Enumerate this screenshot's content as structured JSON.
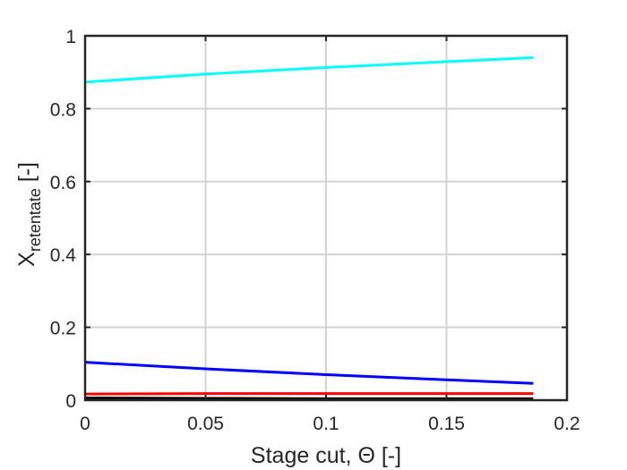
{
  "chart_data": {
    "type": "line",
    "xlabel": "Stage cut, Θ [-]",
    "ylabel": {
      "main": "X",
      "subscript": "retentate",
      "suffix": " [-]"
    },
    "xlim": [
      0,
      0.2
    ],
    "ylim": [
      0,
      1
    ],
    "xticks": [
      0,
      0.05,
      0.1,
      0.15,
      0.2
    ],
    "xtick_labels": [
      "0",
      "0.05",
      "0.1",
      "0.15",
      "0.2"
    ],
    "yticks": [
      0,
      0.2,
      0.4,
      0.6,
      0.8,
      1
    ],
    "ytick_labels": [
      "0",
      "0.2",
      "0.4",
      "0.6",
      "0.8",
      "1"
    ],
    "grid": true,
    "series": [
      {
        "color": "#00ffff",
        "x": [
          0,
          0.05,
          0.1,
          0.15,
          0.186
        ],
        "y": [
          0.873,
          0.895,
          0.913,
          0.929,
          0.94
        ]
      },
      {
        "color": "#0000ff",
        "x": [
          0,
          0.05,
          0.1,
          0.15,
          0.186
        ],
        "y": [
          0.104,
          0.086,
          0.07,
          0.056,
          0.046
        ]
      },
      {
        "color": "#ff0000",
        "x": [
          0,
          0.05,
          0.1,
          0.15,
          0.186
        ],
        "y": [
          0.017,
          0.018,
          0.018,
          0.018,
          0.018
        ]
      },
      {
        "color": "#000000",
        "x": [
          0,
          0.05,
          0.1,
          0.15,
          0.186
        ],
        "y": [
          0.006,
          0.005,
          0.004,
          0.004,
          0.004
        ]
      }
    ]
  }
}
